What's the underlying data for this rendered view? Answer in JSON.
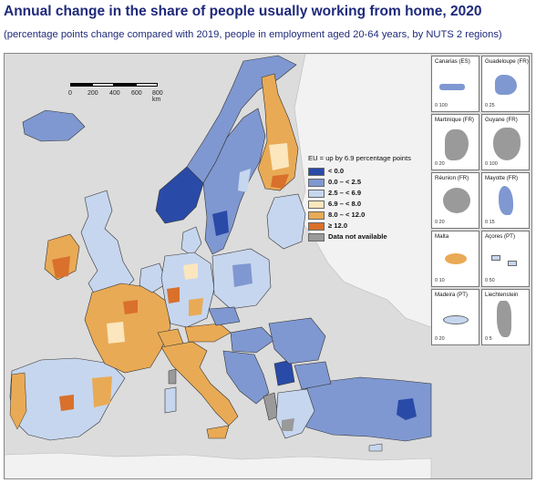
{
  "title": "Annual change in the share of people usually working from home, 2020",
  "subtitle": "(percentage points change compared with 2019, people in employment aged 20-64 years, by NUTS 2 regions)",
  "scale": {
    "ticks": [
      "0",
      "200",
      "400",
      "600",
      "800 km"
    ]
  },
  "colors": {
    "lt0": "#2a4aa8",
    "c0to25": "#7f98d1",
    "c25to69": "#c6d6ee",
    "c69to8": "#fbe6bd",
    "c8to12": "#e9aa55",
    "ge12": "#d9702b",
    "na": "#9a9a9a",
    "sea": "#dcdcdc",
    "nonEU": "#f2f2f2",
    "border": "#1a1a1a"
  },
  "legend": {
    "header": "EU = up by 6.9 percentage points",
    "classes": [
      {
        "label": "< 0.0",
        "color": "#2a4aa8"
      },
      {
        "label": "0.0 – < 2.5",
        "color": "#7f98d1"
      },
      {
        "label": "2.5 – < 6.9",
        "color": "#c6d6ee"
      },
      {
        "label": "6.9 – < 8.0",
        "color": "#fbe6bd"
      },
      {
        "label": "8.0 – < 12.0",
        "color": "#e9aa55"
      },
      {
        "label": "≥ 12.0",
        "color": "#d9702b"
      },
      {
        "label": "Data not available",
        "color": "#9a9a9a"
      }
    ]
  },
  "insets": [
    {
      "name": "Canarias (ES)",
      "scale": "0   100",
      "color": "#7f98d1"
    },
    {
      "name": "Guadeloupe (FR)",
      "scale": "0   25",
      "color": "#7f98d1"
    },
    {
      "name": "Martinique (FR)",
      "scale": "0   20",
      "color": "#9a9a9a"
    },
    {
      "name": "Guyane (FR)",
      "scale": "0   100",
      "color": "#9a9a9a"
    },
    {
      "name": "Réunion (FR)",
      "scale": "0   20",
      "color": "#9a9a9a"
    },
    {
      "name": "Mayotte (FR)",
      "scale": "0   15",
      "color": "#7f98d1"
    },
    {
      "name": "Malta",
      "scale": "0   10",
      "color": "#e9aa55"
    },
    {
      "name": "Açores (PT)",
      "scale": "0   50",
      "color": "#c6d6ee"
    },
    {
      "name": "Madeira (PT)",
      "scale": "0   20",
      "color": "#c6d6ee"
    },
    {
      "name": "Liechtenstein",
      "scale": "0   5",
      "color": "#9a9a9a"
    }
  ]
}
